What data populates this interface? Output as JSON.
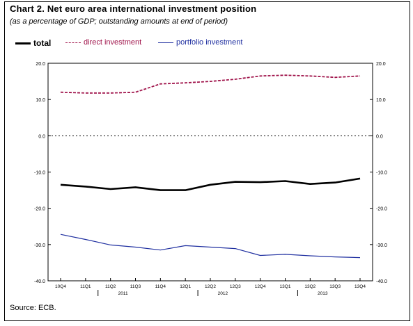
{
  "title": "Chart 2. Net euro area international investment position",
  "subtitle": "(as a percentage of GDP; outstanding amounts at end of period)",
  "source": "Source: ECB.",
  "colors": {
    "total": "#000000",
    "direct": "#a0144b",
    "portfolio": "#1f2fa0"
  },
  "chart_data": {
    "type": "line",
    "categories": [
      "10Q4",
      "11Q1",
      "11Q2",
      "11Q3",
      "11Q4",
      "12Q1",
      "12Q2",
      "12Q3",
      "12Q4",
      "13Q1",
      "13Q2",
      "13Q3",
      "13Q4"
    ],
    "year_labels": [
      {
        "label": "2011",
        "index": 2.5
      },
      {
        "label": "2012",
        "index": 6.5
      },
      {
        "label": "2013",
        "index": 10.5
      }
    ],
    "series": [
      {
        "name": "total",
        "key": "total",
        "values": [
          -13.5,
          -14.0,
          -14.7,
          -14.2,
          -15.0,
          -15.0,
          -13.5,
          -12.7,
          -12.8,
          -12.5,
          -13.3,
          -12.9,
          -11.8
        ]
      },
      {
        "name": "direct investment",
        "key": "direct",
        "values": [
          12.0,
          11.8,
          11.8,
          12.0,
          14.3,
          14.6,
          15.0,
          15.6,
          16.5,
          16.7,
          16.5,
          16.1,
          16.5
        ]
      },
      {
        "name": "portfolio investment",
        "key": "portfolio",
        "values": [
          -27.2,
          -28.6,
          -30.1,
          -30.7,
          -31.5,
          -30.3,
          -30.7,
          -31.1,
          -33.0,
          -32.7,
          -33.1,
          -33.4,
          -33.6
        ]
      }
    ],
    "ylim": [
      -40,
      20
    ],
    "yticks": [
      -40,
      -30,
      -20,
      -10,
      0,
      10,
      20
    ],
    "ytick_labels": [
      "-40.0",
      "-30.0",
      "-20.0",
      "-10.0",
      "0.0",
      "10.0",
      "20.0"
    ],
    "zero_line": "dotted",
    "legend_position": "top-left",
    "grid": false
  }
}
